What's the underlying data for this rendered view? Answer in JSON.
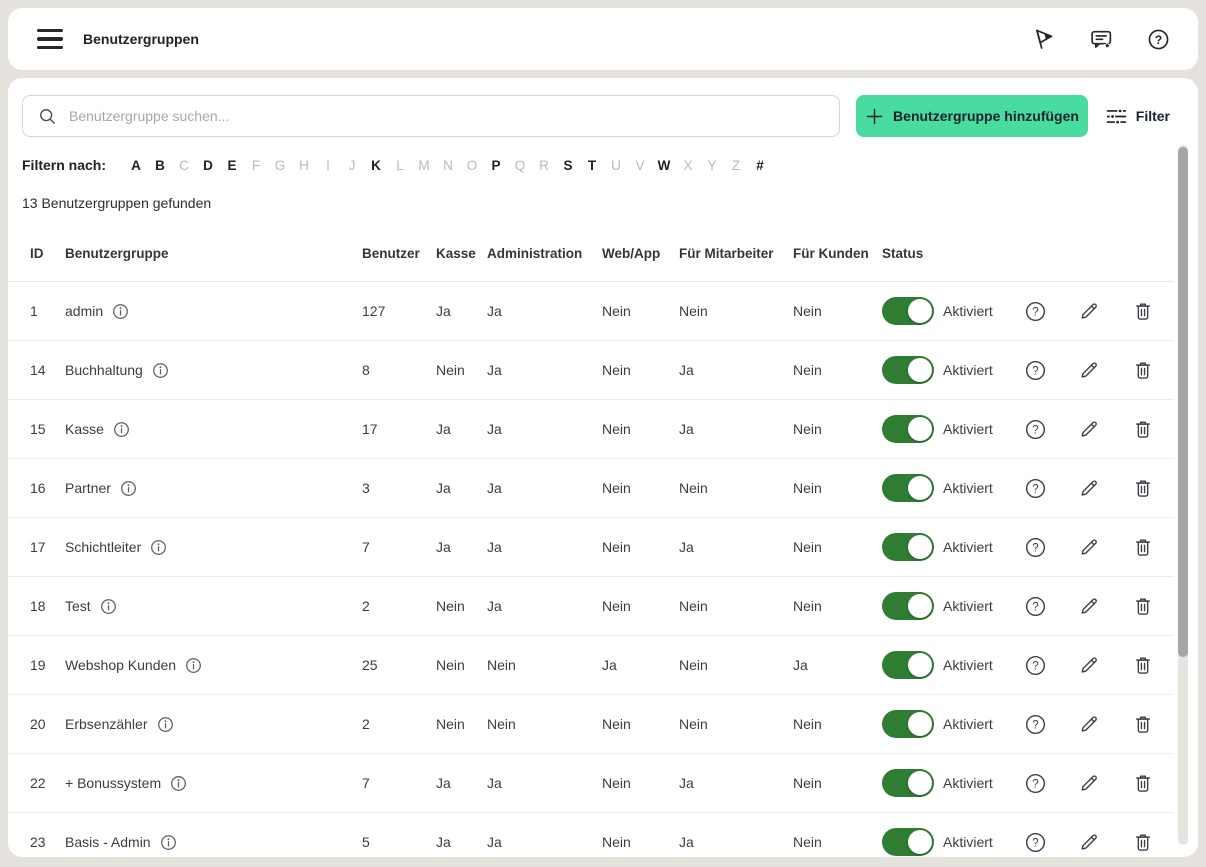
{
  "header": {
    "title": "Benutzergruppen",
    "icons": [
      "menu-icon",
      "flag-icon",
      "feedback-icon",
      "help-icon"
    ]
  },
  "toolbar": {
    "search_placeholder": "Benutzergruppe suchen...",
    "search_value": "",
    "add_button_label": "Benutzergruppe hinzufügen",
    "filter_label": "Filter"
  },
  "alphabet_filter": {
    "label": "Filtern nach:",
    "letters": [
      {
        "char": "A",
        "active": true
      },
      {
        "char": "B",
        "active": true
      },
      {
        "char": "C",
        "active": false
      },
      {
        "char": "D",
        "active": true
      },
      {
        "char": "E",
        "active": true
      },
      {
        "char": "F",
        "active": false
      },
      {
        "char": "G",
        "active": false
      },
      {
        "char": "H",
        "active": false
      },
      {
        "char": "I",
        "active": false
      },
      {
        "char": "J",
        "active": false
      },
      {
        "char": "K",
        "active": true
      },
      {
        "char": "L",
        "active": false
      },
      {
        "char": "M",
        "active": false
      },
      {
        "char": "N",
        "active": false
      },
      {
        "char": "O",
        "active": false
      },
      {
        "char": "P",
        "active": true
      },
      {
        "char": "Q",
        "active": false
      },
      {
        "char": "R",
        "active": false
      },
      {
        "char": "S",
        "active": true
      },
      {
        "char": "T",
        "active": true
      },
      {
        "char": "U",
        "active": false
      },
      {
        "char": "V",
        "active": false
      },
      {
        "char": "W",
        "active": true
      },
      {
        "char": "X",
        "active": false
      },
      {
        "char": "Y",
        "active": false
      },
      {
        "char": "Z",
        "active": false
      },
      {
        "char": "#",
        "active": true
      }
    ]
  },
  "results_summary": "13 Benutzergruppen gefunden",
  "table": {
    "columns": [
      "ID",
      "Benutzergruppe",
      "Benutzer",
      "Kasse",
      "Administration",
      "Web/App",
      "Für Mitarbeiter",
      "Für Kunden",
      "Status"
    ],
    "rows": [
      {
        "id": "1",
        "name": "admin",
        "benutzer": "127",
        "kasse": "Ja",
        "administration": "Ja",
        "webapp": "Nein",
        "fuer_mitarbeiter": "Nein",
        "fuer_kunden": "Nein",
        "status_label": "Aktiviert",
        "enabled": true
      },
      {
        "id": "14",
        "name": "Buchhaltung",
        "benutzer": "8",
        "kasse": "Nein",
        "administration": "Ja",
        "webapp": "Nein",
        "fuer_mitarbeiter": "Ja",
        "fuer_kunden": "Nein",
        "status_label": "Aktiviert",
        "enabled": true
      },
      {
        "id": "15",
        "name": "Kasse",
        "benutzer": "17",
        "kasse": "Ja",
        "administration": "Ja",
        "webapp": "Nein",
        "fuer_mitarbeiter": "Ja",
        "fuer_kunden": "Nein",
        "status_label": "Aktiviert",
        "enabled": true
      },
      {
        "id": "16",
        "name": "Partner",
        "benutzer": "3",
        "kasse": "Ja",
        "administration": "Ja",
        "webapp": "Nein",
        "fuer_mitarbeiter": "Nein",
        "fuer_kunden": "Nein",
        "status_label": "Aktiviert",
        "enabled": true
      },
      {
        "id": "17",
        "name": "Schichtleiter",
        "benutzer": "7",
        "kasse": "Ja",
        "administration": "Ja",
        "webapp": "Nein",
        "fuer_mitarbeiter": "Ja",
        "fuer_kunden": "Nein",
        "status_label": "Aktiviert",
        "enabled": true
      },
      {
        "id": "18",
        "name": "Test",
        "benutzer": "2",
        "kasse": "Nein",
        "administration": "Ja",
        "webapp": "Nein",
        "fuer_mitarbeiter": "Nein",
        "fuer_kunden": "Nein",
        "status_label": "Aktiviert",
        "enabled": true
      },
      {
        "id": "19",
        "name": "Webshop Kunden",
        "benutzer": "25",
        "kasse": "Nein",
        "administration": "Nein",
        "webapp": "Ja",
        "fuer_mitarbeiter": "Nein",
        "fuer_kunden": "Ja",
        "status_label": "Aktiviert",
        "enabled": true
      },
      {
        "id": "20",
        "name": "Erbsenzähler",
        "benutzer": "2",
        "kasse": "Nein",
        "administration": "Nein",
        "webapp": "Nein",
        "fuer_mitarbeiter": "Nein",
        "fuer_kunden": "Nein",
        "status_label": "Aktiviert",
        "enabled": true
      },
      {
        "id": "22",
        "name": "+ Bonussystem",
        "benutzer": "7",
        "kasse": "Ja",
        "administration": "Ja",
        "webapp": "Nein",
        "fuer_mitarbeiter": "Ja",
        "fuer_kunden": "Nein",
        "status_label": "Aktiviert",
        "enabled": true
      },
      {
        "id": "23",
        "name": "Basis - Admin",
        "benutzer": "5",
        "kasse": "Ja",
        "administration": "Ja",
        "webapp": "Nein",
        "fuer_mitarbeiter": "Ja",
        "fuer_kunden": "Nein",
        "status_label": "Aktiviert",
        "enabled": true
      }
    ],
    "row_actions": [
      "help",
      "edit",
      "delete"
    ]
  },
  "colors": {
    "accent_green": "#48dca0",
    "toggle_green": "#2e7d32",
    "page_background": "#e5e2de"
  }
}
